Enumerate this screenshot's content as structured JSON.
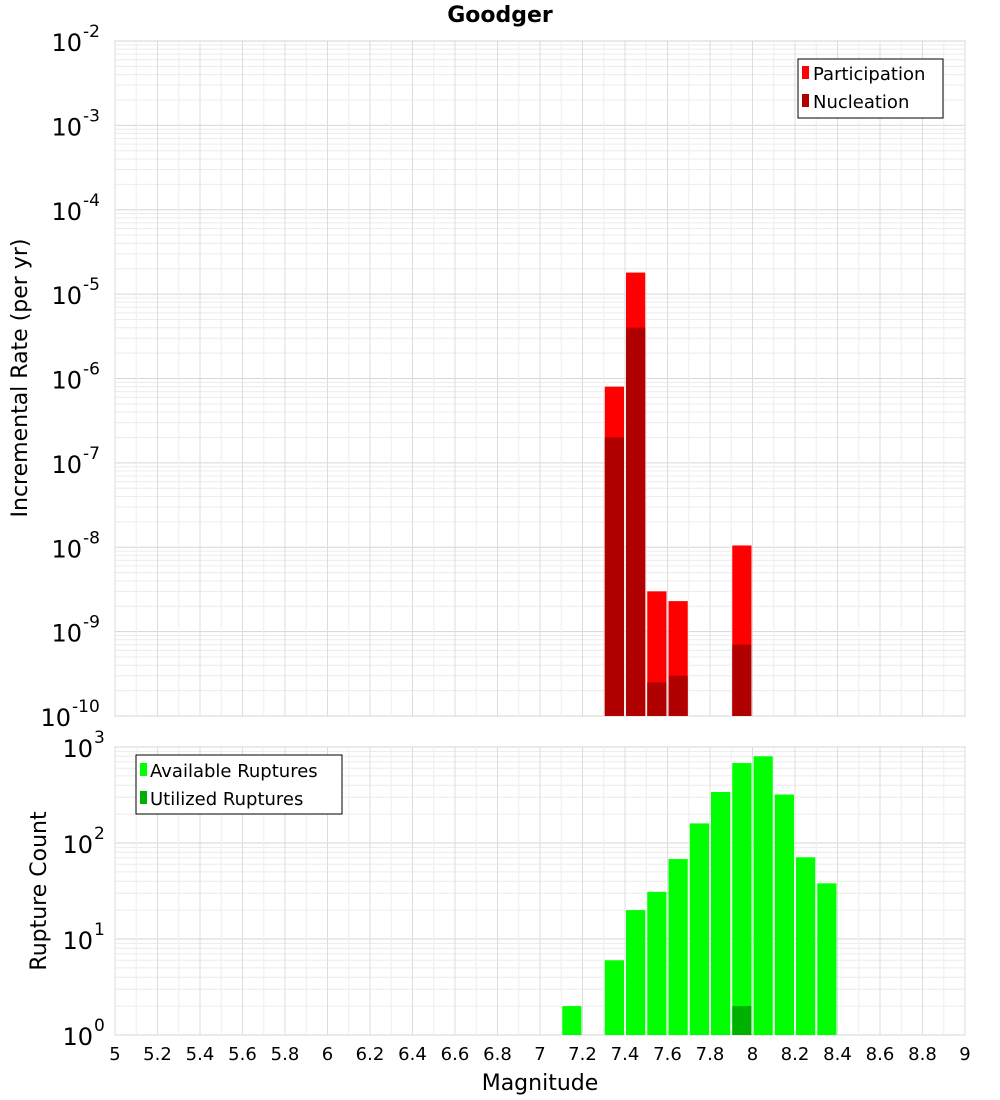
{
  "chart_data": [
    {
      "type": "bar",
      "title": "Goodger",
      "xlabel": "",
      "ylabel": "Incremental Rate (per yr)",
      "yscale": "log",
      "ylim_exp": [
        -10,
        -2
      ],
      "y_ticks_exp": [
        "-2",
        "-3",
        "-4",
        "-5",
        "-6",
        "-7",
        "-8",
        "-9",
        "-10"
      ],
      "xlim": [
        5,
        9
      ],
      "bin_width": 0.1,
      "grid": true,
      "legend_position": "top-right",
      "series": [
        {
          "name": "Participation",
          "color": "#ff0000",
          "points": [
            {
              "x": 7.35,
              "y": 8e-07
            },
            {
              "x": 7.45,
              "y": 1.8e-05
            },
            {
              "x": 7.55,
              "y": 3e-09
            },
            {
              "x": 7.65,
              "y": 2.3e-09
            },
            {
              "x": 7.95,
              "y": 1.05e-08
            }
          ]
        },
        {
          "name": "Nucleation",
          "color": "#b00000",
          "points": [
            {
              "x": 7.35,
              "y": 2e-07
            },
            {
              "x": 7.45,
              "y": 4e-06
            },
            {
              "x": 7.55,
              "y": 2.5e-10
            },
            {
              "x": 7.65,
              "y": 3e-10
            },
            {
              "x": 7.95,
              "y": 7e-10
            }
          ]
        }
      ]
    },
    {
      "type": "bar",
      "xlabel": "Magnitude",
      "ylabel": "Rupture Count",
      "yscale": "log",
      "ylim_exp": [
        0,
        3
      ],
      "y_ticks_exp": [
        "3",
        "2",
        "1",
        "0"
      ],
      "xlim": [
        5,
        9
      ],
      "x_ticks": [
        "5",
        "5.2",
        "5.4",
        "5.6",
        "5.8",
        "6",
        "6.2",
        "6.4",
        "6.6",
        "6.8",
        "7",
        "7.2",
        "7.4",
        "7.6",
        "7.8",
        "8",
        "8.2",
        "8.4",
        "8.6",
        "8.8",
        "9"
      ],
      "bin_width": 0.1,
      "grid": true,
      "legend_position": "top-left",
      "series": [
        {
          "name": "Available Ruptures",
          "color": "#00ff00",
          "points": [
            {
              "x": 6.85,
              "y": 1
            },
            {
              "x": 7.15,
              "y": 2
            },
            {
              "x": 7.25,
              "y": 1
            },
            {
              "x": 7.35,
              "y": 6
            },
            {
              "x": 7.45,
              "y": 20
            },
            {
              "x": 7.55,
              "y": 31
            },
            {
              "x": 7.65,
              "y": 68
            },
            {
              "x": 7.75,
              "y": 160
            },
            {
              "x": 7.85,
              "y": 340
            },
            {
              "x": 7.95,
              "y": 680
            },
            {
              "x": 8.05,
              "y": 800
            },
            {
              "x": 8.15,
              "y": 320
            },
            {
              "x": 8.25,
              "y": 71
            },
            {
              "x": 8.35,
              "y": 38
            }
          ]
        },
        {
          "name": "Utilized Ruptures",
          "color": "#00b000",
          "points": [
            {
              "x": 7.35,
              "y": 1
            },
            {
              "x": 7.45,
              "y": 1
            },
            {
              "x": 7.55,
              "y": 1
            },
            {
              "x": 7.65,
              "y": 1
            },
            {
              "x": 7.95,
              "y": 2
            }
          ]
        }
      ]
    }
  ]
}
